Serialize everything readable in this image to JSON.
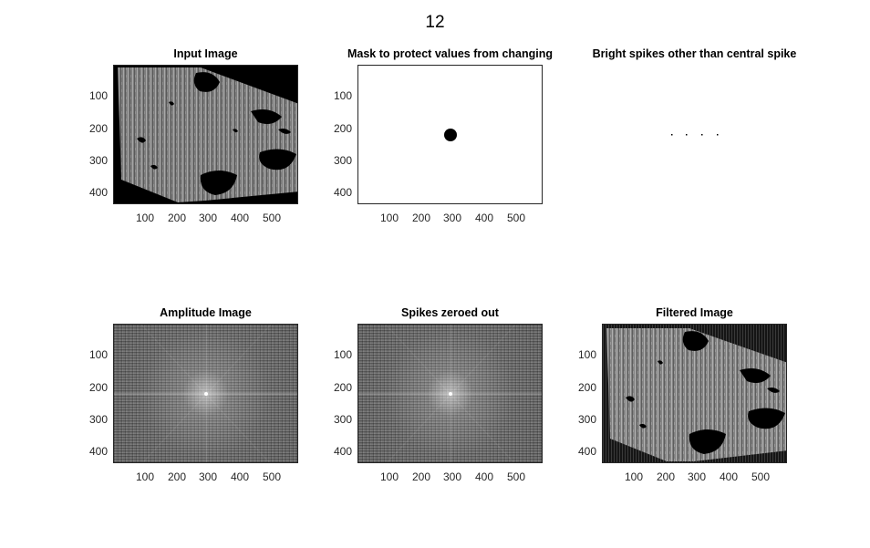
{
  "figure": {
    "title": "12"
  },
  "panels": [
    {
      "id": "input",
      "title": "Input Image"
    },
    {
      "id": "mask",
      "title": "Mask to protect values from changing"
    },
    {
      "id": "spikes",
      "title": "Bright spikes other than central spike"
    },
    {
      "id": "amplitude",
      "title": "Amplitude Image"
    },
    {
      "id": "zeroed",
      "title": "Spikes zeroed out"
    },
    {
      "id": "filtered",
      "title": "Filtered Image"
    }
  ],
  "axes": {
    "x_ticks": [
      "100",
      "200",
      "300",
      "400",
      "500"
    ],
    "y_ticks": [
      "100",
      "200",
      "300",
      "400"
    ]
  }
}
